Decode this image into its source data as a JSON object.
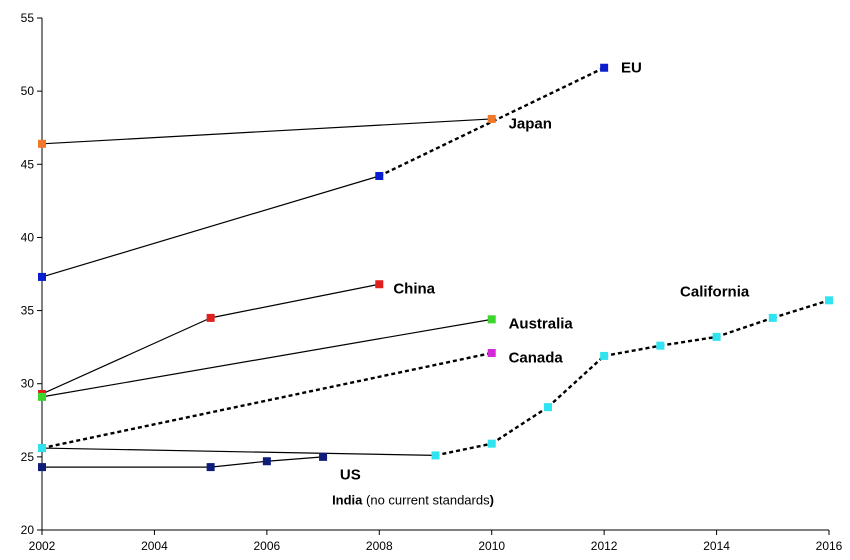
{
  "chart_data": {
    "type": "line",
    "title": "",
    "xlabel": "",
    "ylabel": "",
    "xlim": [
      2002,
      2016
    ],
    "ylim": [
      20,
      55
    ],
    "x_ticks": [
      "2002",
      "2004",
      "2006",
      "2008",
      "2010",
      "2012",
      "2014",
      "2016"
    ],
    "y_ticks": [
      "20",
      "25",
      "30",
      "35",
      "40",
      "45",
      "50",
      "55"
    ],
    "grid": false,
    "legend": "none",
    "series": [
      {
        "name": "EU",
        "color": "#0a1ecf",
        "points": [
          [
            2002,
            37.3
          ],
          [
            2008,
            44.2
          ],
          [
            2012,
            51.6
          ]
        ],
        "dashed_from_index": 1,
        "segments_from": [
          0,
          1
        ]
      },
      {
        "name": "Japan",
        "color": "#f07a2a",
        "points": [
          [
            2002,
            46.4
          ],
          [
            2010,
            48.1
          ]
        ],
        "dashed_from_index": -1,
        "segments_from": [
          0
        ]
      },
      {
        "name": "China",
        "color": "#e0201c",
        "points": [
          [
            2002,
            29.3
          ],
          [
            2005,
            34.5
          ],
          [
            2008,
            36.8
          ]
        ],
        "dashed_from_index": -1,
        "segments_from": [
          0,
          1
        ]
      },
      {
        "name": "Australia",
        "color": "#3dd62a",
        "points": [
          [
            2002,
            29.1
          ],
          [
            2010,
            34.4
          ]
        ],
        "dashed_from_index": -1,
        "segments_from": [
          0
        ]
      },
      {
        "name": "Canada",
        "color": "#d42ad6",
        "points": [
          [
            2002,
            25.6
          ],
          [
            2010,
            32.1
          ]
        ],
        "dashed_from_index": 0,
        "segments_from": [
          0
        ]
      },
      {
        "name": "California",
        "color": "#2fe3ef",
        "points": [
          [
            2002,
            25.6
          ],
          [
            2009,
            25.1
          ],
          [
            2010,
            25.9
          ],
          [
            2011,
            28.4
          ],
          [
            2012,
            31.9
          ],
          [
            2013,
            32.6
          ],
          [
            2014,
            33.2
          ],
          [
            2015,
            34.5
          ],
          [
            2016,
            35.7
          ]
        ],
        "dashed_from_index": 1,
        "segments_from": [
          0,
          1,
          2,
          3,
          4,
          5,
          6,
          7
        ]
      },
      {
        "name": "US",
        "color": "#0f1c7a",
        "points": [
          [
            2002,
            24.3
          ],
          [
            2005,
            24.3
          ],
          [
            2006,
            24.7
          ],
          [
            2007,
            25.0
          ]
        ],
        "dashed_from_index": -1,
        "segments_from": [
          0,
          1,
          2
        ]
      }
    ],
    "annotations": [
      {
        "text": "EU",
        "x": 2012.3,
        "y": 51.6
      },
      {
        "text": "Japan",
        "x": 2010.3,
        "y": 47.8
      },
      {
        "text": "China",
        "x": 2008.25,
        "y": 36.5
      },
      {
        "text": "Australia",
        "x": 2010.3,
        "y": 34.1
      },
      {
        "text": "Canada",
        "x": 2010.3,
        "y": 31.8
      },
      {
        "text": "California",
        "x": 2013.35,
        "y": 36.3
      },
      {
        "text": "US",
        "x": 2007.3,
        "y": 23.8
      }
    ],
    "footnote": {
      "bold": "India",
      "rest": " (no current standards",
      "close": ")",
      "x": 2008.6,
      "y": 22.0
    }
  }
}
